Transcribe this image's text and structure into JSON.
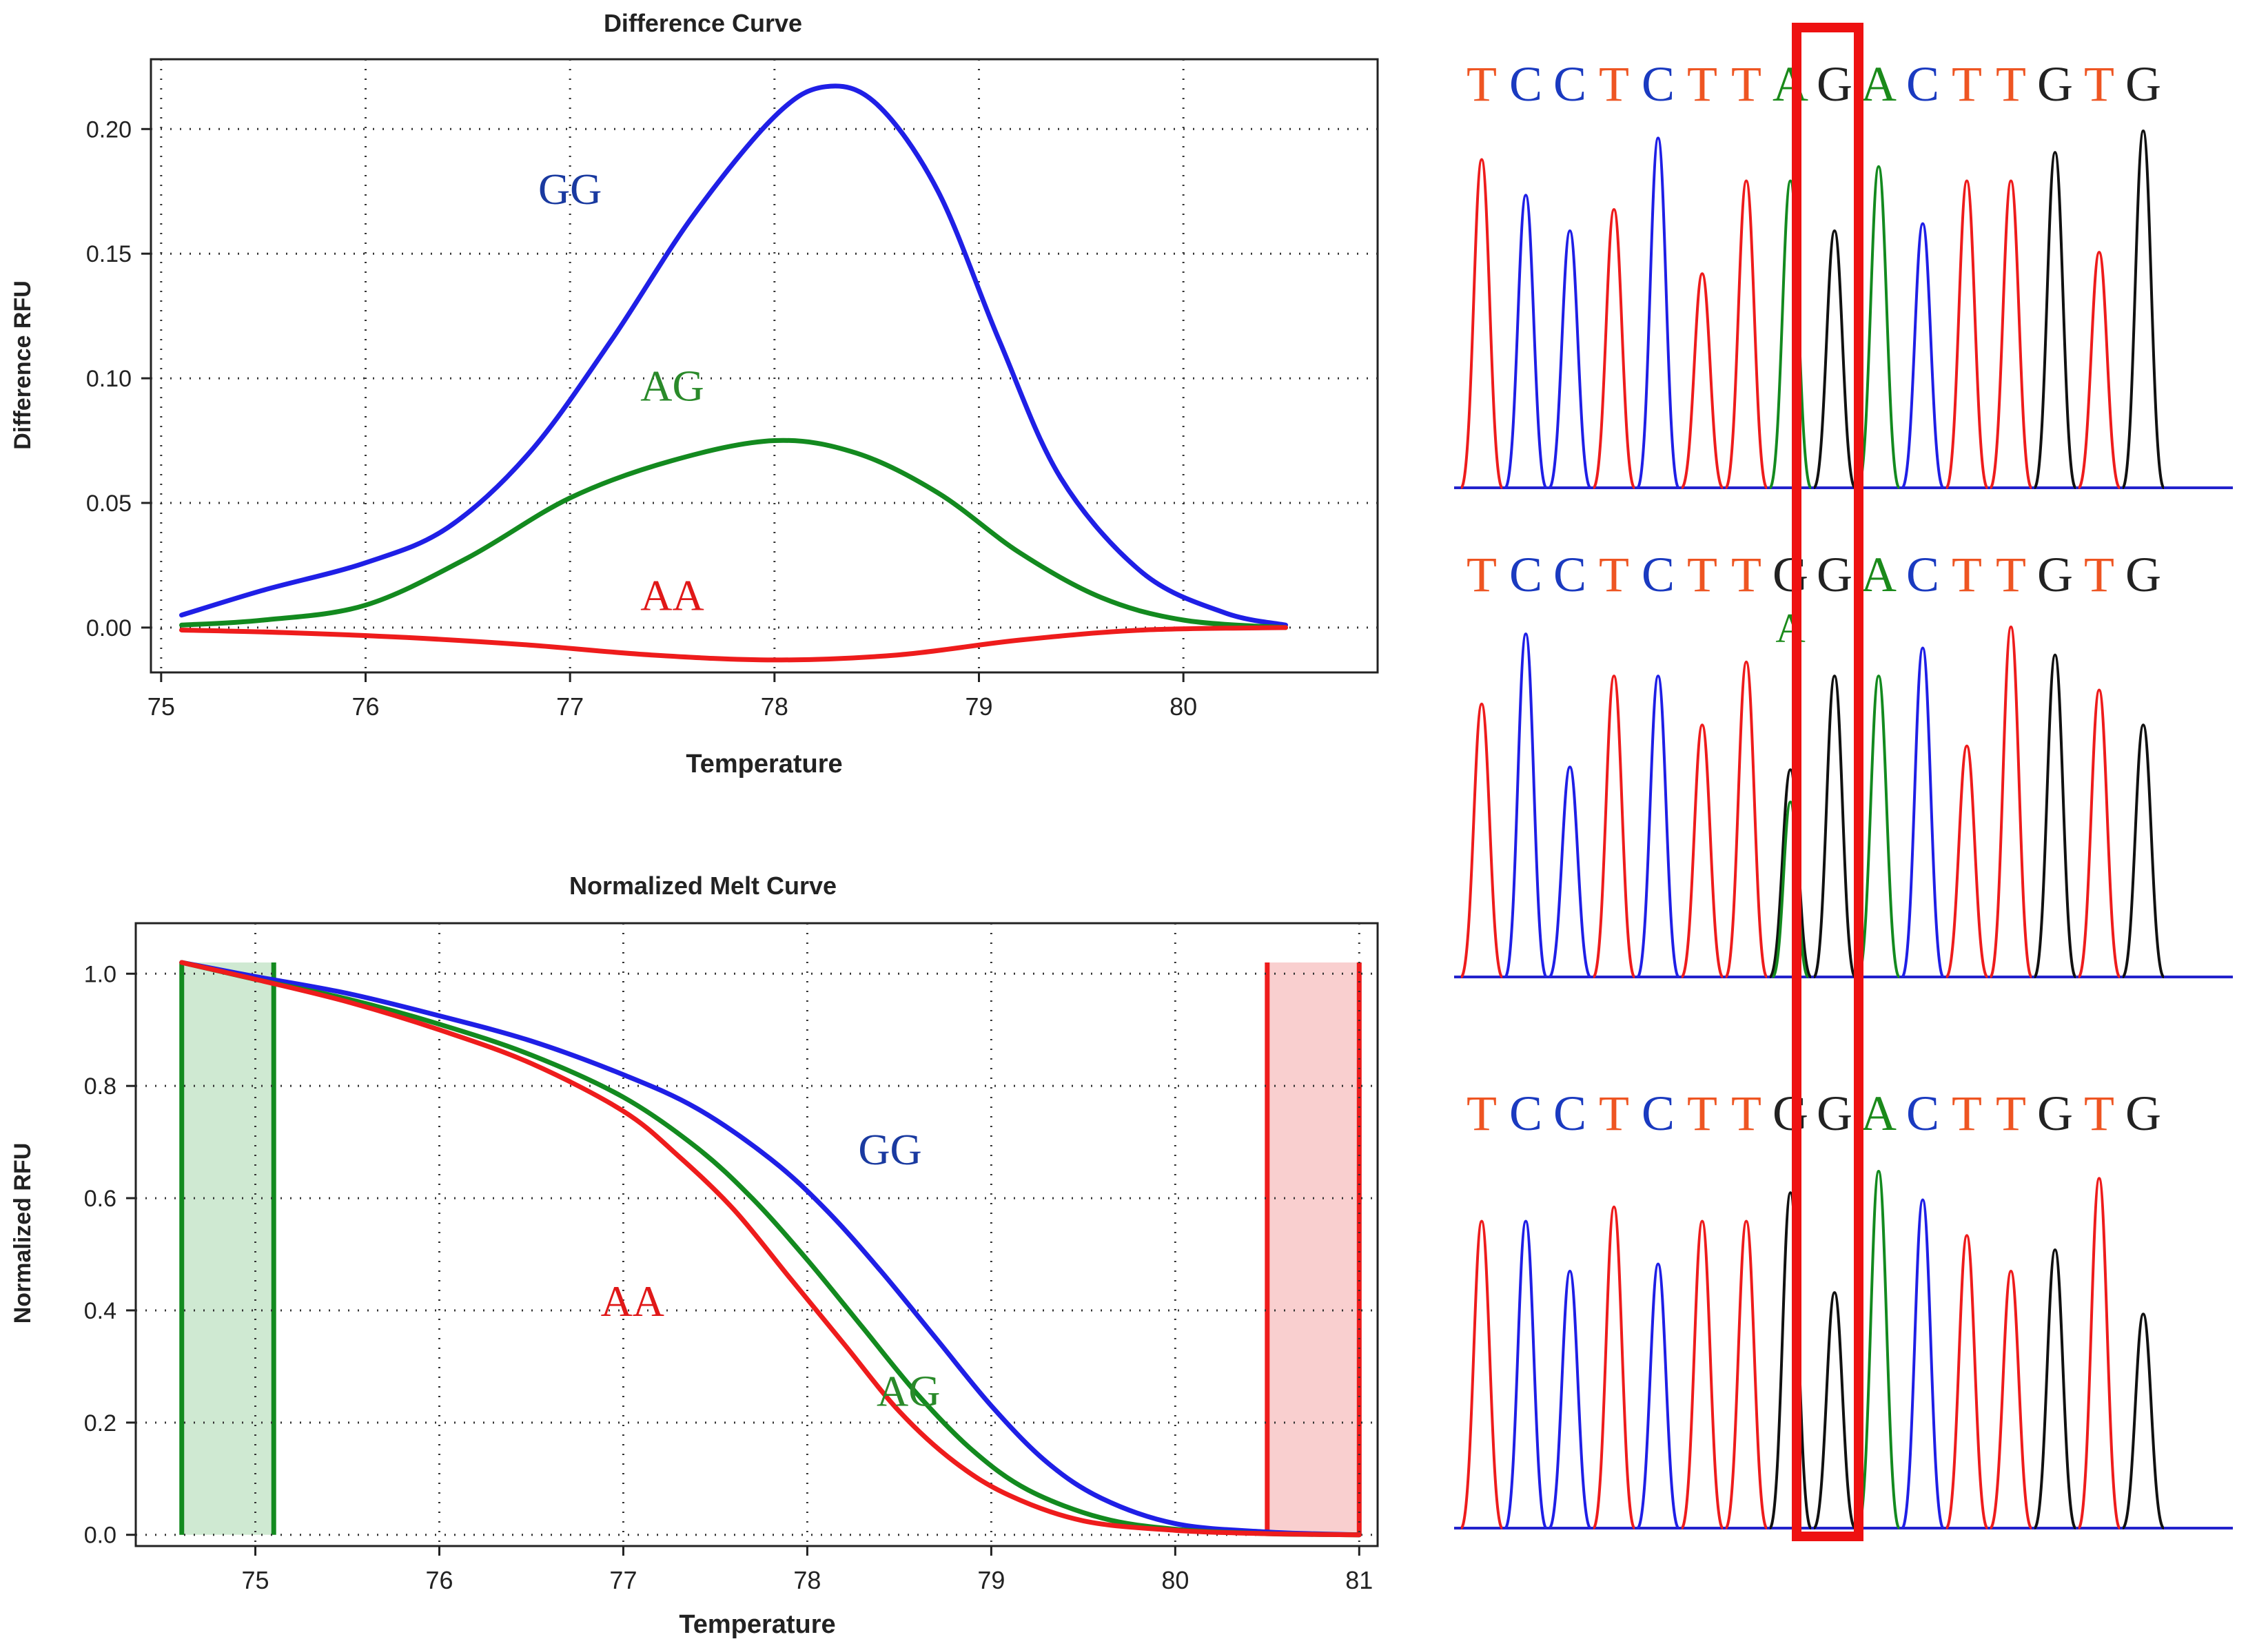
{
  "colors": {
    "blue": "#1f1fe6",
    "green": "#138a1f",
    "red": "#ee1c1c",
    "black": "#111111",
    "label_blue": "#1a3aa0",
    "label_green": "#2a8a2a",
    "label_red": "#e01818",
    "highlight": "#ee1111",
    "seq_orange": "#ee5522",
    "seq_blue": "#1a3ac0",
    "seq_green": "#1a8a1a",
    "seq_black": "#222222"
  },
  "chart_data": [
    {
      "id": "difference",
      "type": "line",
      "title": "Difference Curve",
      "xlabel": "Temperature",
      "ylabel": "Difference RFU",
      "xlim": [
        74.95,
        80.95
      ],
      "ylim": [
        -0.018,
        0.228
      ],
      "xticks": [
        75,
        76,
        77,
        78,
        79,
        80
      ],
      "yticks": [
        0.0,
        0.05,
        0.1,
        0.15,
        0.2
      ],
      "ytick_labels": [
        "0.00",
        "0.05",
        "0.10",
        "0.15",
        "0.20"
      ],
      "grid": true,
      "series": [
        {
          "name": "GG",
          "color": "#1f1fe6",
          "x": [
            75.1,
            75.5,
            76.0,
            76.4,
            76.8,
            77.2,
            77.6,
            78.0,
            78.25,
            78.5,
            78.8,
            79.1,
            79.4,
            79.8,
            80.2,
            80.5
          ],
          "y": [
            0.005,
            0.015,
            0.026,
            0.04,
            0.07,
            0.115,
            0.165,
            0.205,
            0.217,
            0.21,
            0.175,
            0.115,
            0.06,
            0.022,
            0.006,
            0.001
          ]
        },
        {
          "name": "AG",
          "color": "#138a1f",
          "x": [
            75.1,
            75.5,
            76.0,
            76.5,
            77.0,
            77.5,
            78.0,
            78.4,
            78.8,
            79.2,
            79.6,
            80.0,
            80.5
          ],
          "y": [
            0.001,
            0.003,
            0.009,
            0.028,
            0.052,
            0.067,
            0.075,
            0.07,
            0.054,
            0.03,
            0.012,
            0.003,
            0.0
          ]
        },
        {
          "name": "AA",
          "color": "#ee1c1c",
          "x": [
            75.1,
            75.6,
            76.2,
            76.8,
            77.4,
            78.0,
            78.6,
            79.2,
            79.8,
            80.5
          ],
          "y": [
            -0.001,
            -0.002,
            -0.004,
            -0.007,
            -0.011,
            -0.013,
            -0.011,
            -0.005,
            -0.001,
            0.0
          ]
        }
      ],
      "annotations": [
        {
          "text": "GG",
          "x": 77.0,
          "y": 0.17,
          "color": "#1a3aa0"
        },
        {
          "text": "AG",
          "x": 77.5,
          "y": 0.091,
          "color": "#2a8a2a"
        },
        {
          "text": "AA",
          "x": 77.5,
          "y": 0.007,
          "color": "#e01818"
        }
      ]
    },
    {
      "id": "melt",
      "type": "line",
      "title": "Normalized Melt Curve",
      "xlabel": "Temperature",
      "ylabel": "Normalized RFU",
      "xlim": [
        74.35,
        81.1
      ],
      "ylim": [
        -0.02,
        1.09
      ],
      "xticks": [
        75,
        76,
        77,
        78,
        79,
        80,
        81
      ],
      "yticks": [
        0.0,
        0.2,
        0.4,
        0.6,
        0.8,
        1.0
      ],
      "ytick_labels": [
        "0.0",
        "0.2",
        "0.4",
        "0.6",
        "0.8",
        "1.0"
      ],
      "grid": true,
      "regions": [
        {
          "from": 74.6,
          "to": 75.1,
          "fill": "#cfe9d2",
          "edge": "#138a1f"
        },
        {
          "from": 80.5,
          "to": 81.0,
          "fill": "#f9cfcf",
          "edge": "#ee1c1c"
        }
      ],
      "series": [
        {
          "name": "GG",
          "color": "#1f1fe6",
          "x": [
            74.6,
            75.0,
            75.5,
            76.0,
            76.5,
            77.0,
            77.4,
            77.8,
            78.1,
            78.4,
            78.7,
            79.0,
            79.3,
            79.6,
            80.0,
            80.5,
            81.0
          ],
          "y": [
            1.02,
            0.995,
            0.965,
            0.925,
            0.88,
            0.82,
            0.76,
            0.67,
            0.58,
            0.47,
            0.35,
            0.23,
            0.13,
            0.065,
            0.02,
            0.005,
            0.0
          ]
        },
        {
          "name": "AG",
          "color": "#138a1f",
          "x": [
            74.6,
            75.0,
            75.5,
            76.0,
            76.5,
            77.0,
            77.4,
            77.7,
            78.0,
            78.3,
            78.6,
            78.9,
            79.2,
            79.6,
            80.0,
            80.5,
            81.0
          ],
          "y": [
            1.02,
            0.99,
            0.955,
            0.91,
            0.855,
            0.78,
            0.69,
            0.6,
            0.49,
            0.37,
            0.25,
            0.15,
            0.08,
            0.03,
            0.01,
            0.002,
            0.0
          ]
        },
        {
          "name": "AA",
          "color": "#ee1c1c",
          "x": [
            74.6,
            75.0,
            75.5,
            76.0,
            76.5,
            77.0,
            77.3,
            77.6,
            77.9,
            78.2,
            78.5,
            78.8,
            79.1,
            79.5,
            80.0,
            80.5,
            81.0
          ],
          "y": [
            1.02,
            0.99,
            0.95,
            0.9,
            0.84,
            0.755,
            0.675,
            0.58,
            0.46,
            0.34,
            0.22,
            0.13,
            0.07,
            0.025,
            0.008,
            0.002,
            0.0
          ]
        }
      ],
      "annotations": [
        {
          "text": "GG",
          "x": 78.45,
          "y": 0.66,
          "color": "#1a3aa0"
        },
        {
          "text": "AA",
          "x": 77.05,
          "y": 0.39,
          "color": "#e01818"
        },
        {
          "text": "AG",
          "x": 78.55,
          "y": 0.23,
          "color": "#2a8a2a"
        }
      ]
    }
  ],
  "chromatograms": [
    {
      "bases": [
        "T",
        "C",
        "C",
        "T",
        "C",
        "T",
        "T",
        "A",
        "G",
        "A",
        "C",
        "T",
        "T",
        "G",
        "T",
        "G"
      ],
      "overlay": ""
    },
    {
      "bases": [
        "T",
        "C",
        "C",
        "T",
        "C",
        "T",
        "T",
        "G",
        "G",
        "A",
        "C",
        "T",
        "T",
        "G",
        "T",
        "G"
      ],
      "overlay": "A"
    },
    {
      "bases": [
        "T",
        "C",
        "C",
        "T",
        "C",
        "T",
        "T",
        "G",
        "G",
        "A",
        "C",
        "T",
        "T",
        "G",
        "T",
        "G"
      ],
      "overlay": ""
    }
  ]
}
